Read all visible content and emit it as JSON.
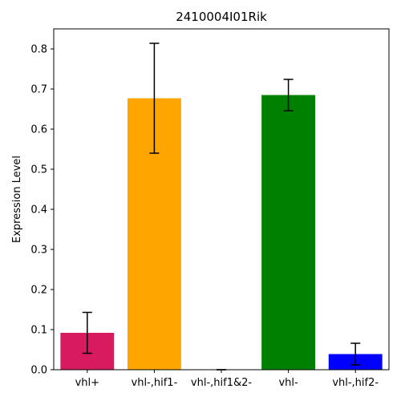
{
  "chart_data": {
    "type": "bar",
    "title": "2410004I01Rik",
    "xlabel": "",
    "ylabel": "Expression Level",
    "ylim": [
      0,
      0.85
    ],
    "yticks": [
      "0.0",
      "0.1",
      "0.2",
      "0.3",
      "0.4",
      "0.5",
      "0.6",
      "0.7",
      "0.8"
    ],
    "grid": false,
    "legend": "none",
    "categories": [
      "vhl+",
      "vhl-,hif1-",
      "vhl-,hif1&2-",
      "vhl-",
      "vhl-,hif2-"
    ],
    "values": [
      0.092,
      0.677,
      0.0,
      0.685,
      0.039
    ],
    "errors": [
      0.051,
      0.137,
      0.0,
      0.039,
      0.027
    ],
    "colors": [
      "#D81B60",
      "#FFA500",
      "#888888",
      "#008000",
      "#0000FF"
    ]
  }
}
